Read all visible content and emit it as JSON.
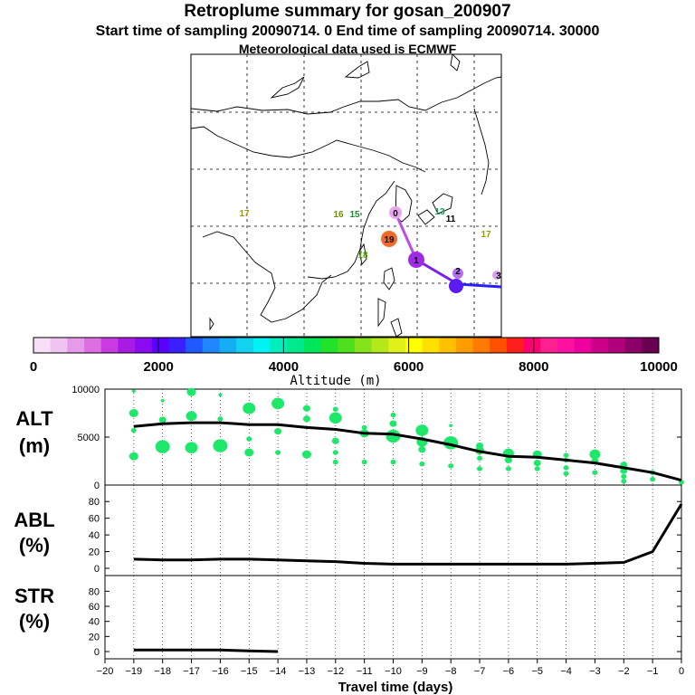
{
  "header": {
    "title": "Retroplume summary for gosan_200907",
    "sampling": "Start time of sampling 20090714.    0     End time of sampling 20090714. 30000",
    "meteo": "Meteorological data used is ECMWF"
  },
  "colorbar": {
    "label": "Altitude (m)",
    "ticks": [
      "0",
      "2000",
      "4000",
      "6000",
      "8000",
      "10000"
    ],
    "colors": [
      "#f7e0f7",
      "#f0c4f0",
      "#e79ae9",
      "#dd6fe3",
      "#c93ae3",
      "#a81be3",
      "#8a0bf0",
      "#5a00ff",
      "#3a20ff",
      "#1e5aff",
      "#1f86ff",
      "#14aef5",
      "#12d2ef",
      "#00f2f2",
      "#00eebb",
      "#00e98c",
      "#00e65a",
      "#22e22a",
      "#4ee01e",
      "#86e21a",
      "#b4e81a",
      "#dff01a",
      "#ffff00",
      "#ffe000",
      "#ffc000",
      "#ff9c00",
      "#ff7a00",
      "#ff5000",
      "#ff1e1e",
      "#ff0070",
      "#ff2090",
      "#ff10a0",
      "#ee00a0",
      "#cc0088",
      "#b0007c",
      "#8a0068",
      "#6a0050"
    ]
  },
  "map": {
    "ticks": [
      "17",
      "16",
      "15",
      "16",
      "13",
      "11",
      "17",
      "19",
      "18"
    ],
    "points": [
      "0",
      "1",
      "2",
      "3"
    ]
  },
  "chart_data": [
    {
      "type": "line",
      "name": "ALT",
      "ylabel_line1": "ALT",
      "ylabel_line2": "(m)",
      "ylim": [
        0,
        10000
      ],
      "yticks": [
        "0",
        "5000",
        "10000"
      ],
      "x": [
        -19,
        -18,
        -17,
        -16,
        -15,
        -14,
        -13,
        -12,
        -11,
        -10,
        -9,
        -8,
        -7,
        -6,
        -5,
        -4,
        -3,
        -2,
        -1,
        0
      ],
      "values": [
        6100,
        6400,
        6500,
        6500,
        6300,
        6300,
        6000,
        5800,
        5400,
        5300,
        4800,
        4200,
        3500,
        3000,
        2900,
        2600,
        2300,
        1800,
        1300,
        500
      ],
      "clusters": [
        {
          "x": -19,
          "alts": [
            3000,
            5700,
            7500,
            9800
          ],
          "sizes": [
            5,
            3,
            5,
            2
          ]
        },
        {
          "x": -18,
          "alts": [
            4000,
            6800,
            8800
          ],
          "sizes": [
            8,
            4,
            2
          ]
        },
        {
          "x": -17,
          "alts": [
            3900,
            7200,
            9700
          ],
          "sizes": [
            7,
            6,
            5
          ]
        },
        {
          "x": -16,
          "alts": [
            4100,
            6900,
            9400
          ],
          "sizes": [
            8,
            3,
            2
          ]
        },
        {
          "x": -15,
          "alts": [
            3400,
            4800,
            8000
          ],
          "sizes": [
            5,
            3,
            7
          ]
        },
        {
          "x": -14,
          "alts": [
            3400,
            5600,
            8500
          ],
          "sizes": [
            3,
            4,
            7
          ]
        },
        {
          "x": -13,
          "alts": [
            3200,
            6900,
            8000
          ],
          "sizes": [
            5,
            4,
            4
          ]
        },
        {
          "x": -12,
          "alts": [
            2400,
            3400,
            4600,
            7000,
            7900
          ],
          "sizes": [
            3,
            3,
            4,
            7,
            3
          ]
        },
        {
          "x": -11,
          "alts": [
            2400,
            5400,
            6000
          ],
          "sizes": [
            3,
            5,
            3
          ]
        },
        {
          "x": -10,
          "alts": [
            2400,
            5100,
            6400,
            7300
          ],
          "sizes": [
            3,
            8,
            4,
            3
          ]
        },
        {
          "x": -9,
          "alts": [
            2200,
            3700,
            4500,
            5700
          ],
          "sizes": [
            3,
            4,
            6,
            7
          ]
        },
        {
          "x": -8,
          "alts": [
            2000,
            4400,
            6200
          ],
          "sizes": [
            3,
            8,
            2
          ]
        },
        {
          "x": -7,
          "alts": [
            1700,
            2800,
            3600,
            4100
          ],
          "sizes": [
            3,
            3,
            5,
            4
          ]
        },
        {
          "x": -6,
          "alts": [
            1700,
            2600,
            3300
          ],
          "sizes": [
            3,
            4,
            6
          ]
        },
        {
          "x": -5,
          "alts": [
            1700,
            2300,
            3200
          ],
          "sizes": [
            3,
            4,
            5
          ]
        },
        {
          "x": -4,
          "alts": [
            1200,
            1800,
            2600,
            3100
          ],
          "sizes": [
            3,
            3,
            3,
            3
          ]
        },
        {
          "x": -3,
          "alts": [
            1300,
            2500,
            3200
          ],
          "sizes": [
            3,
            4,
            6
          ]
        },
        {
          "x": -2,
          "alts": [
            400,
            900,
            1500,
            2100
          ],
          "sizes": [
            3,
            3,
            4,
            4
          ]
        },
        {
          "x": -1,
          "alts": [
            600,
            1300
          ],
          "sizes": [
            3,
            3
          ]
        },
        {
          "x": 0,
          "alts": [
            300
          ],
          "sizes": [
            3
          ]
        }
      ]
    },
    {
      "type": "line",
      "name": "ABL",
      "ylabel_line1": "ABL",
      "ylabel_line2": "(%)",
      "ylim": [
        0,
        90
      ],
      "yticks": [
        "0",
        "20",
        "40",
        "60",
        "80"
      ],
      "x": [
        -19,
        -18,
        -17,
        -16,
        -15,
        -14,
        -13,
        -12,
        -11,
        -10,
        -9,
        -8,
        -7,
        -6,
        -5,
        -4,
        -3,
        -2,
        -1,
        0
      ],
      "values": [
        11,
        10,
        10,
        11,
        11,
        10,
        9,
        8,
        6,
        5,
        5,
        5,
        5,
        5,
        5,
        5,
        6,
        7,
        20,
        77
      ]
    },
    {
      "type": "line",
      "name": "STR",
      "ylabel_line1": "STR",
      "ylabel_line2": "(%)",
      "ylim": [
        0,
        90
      ],
      "yticks": [
        "0",
        "20",
        "40",
        "60",
        "80"
      ],
      "x": [
        -19,
        -18,
        -17,
        -16,
        -15,
        -14
      ],
      "values": [
        2,
        2,
        2,
        2,
        1,
        0
      ]
    }
  ],
  "xaxis": {
    "label": "Travel time (days)",
    "ticks": [
      "−20",
      "−19",
      "−18",
      "−17",
      "−16",
      "−15",
      "−14",
      "−13",
      "−12",
      "−11",
      "−10",
      "−9",
      "−8",
      "−7",
      "−6",
      "−5",
      "−4",
      "−3",
      "−2",
      "−1",
      "0"
    ]
  }
}
